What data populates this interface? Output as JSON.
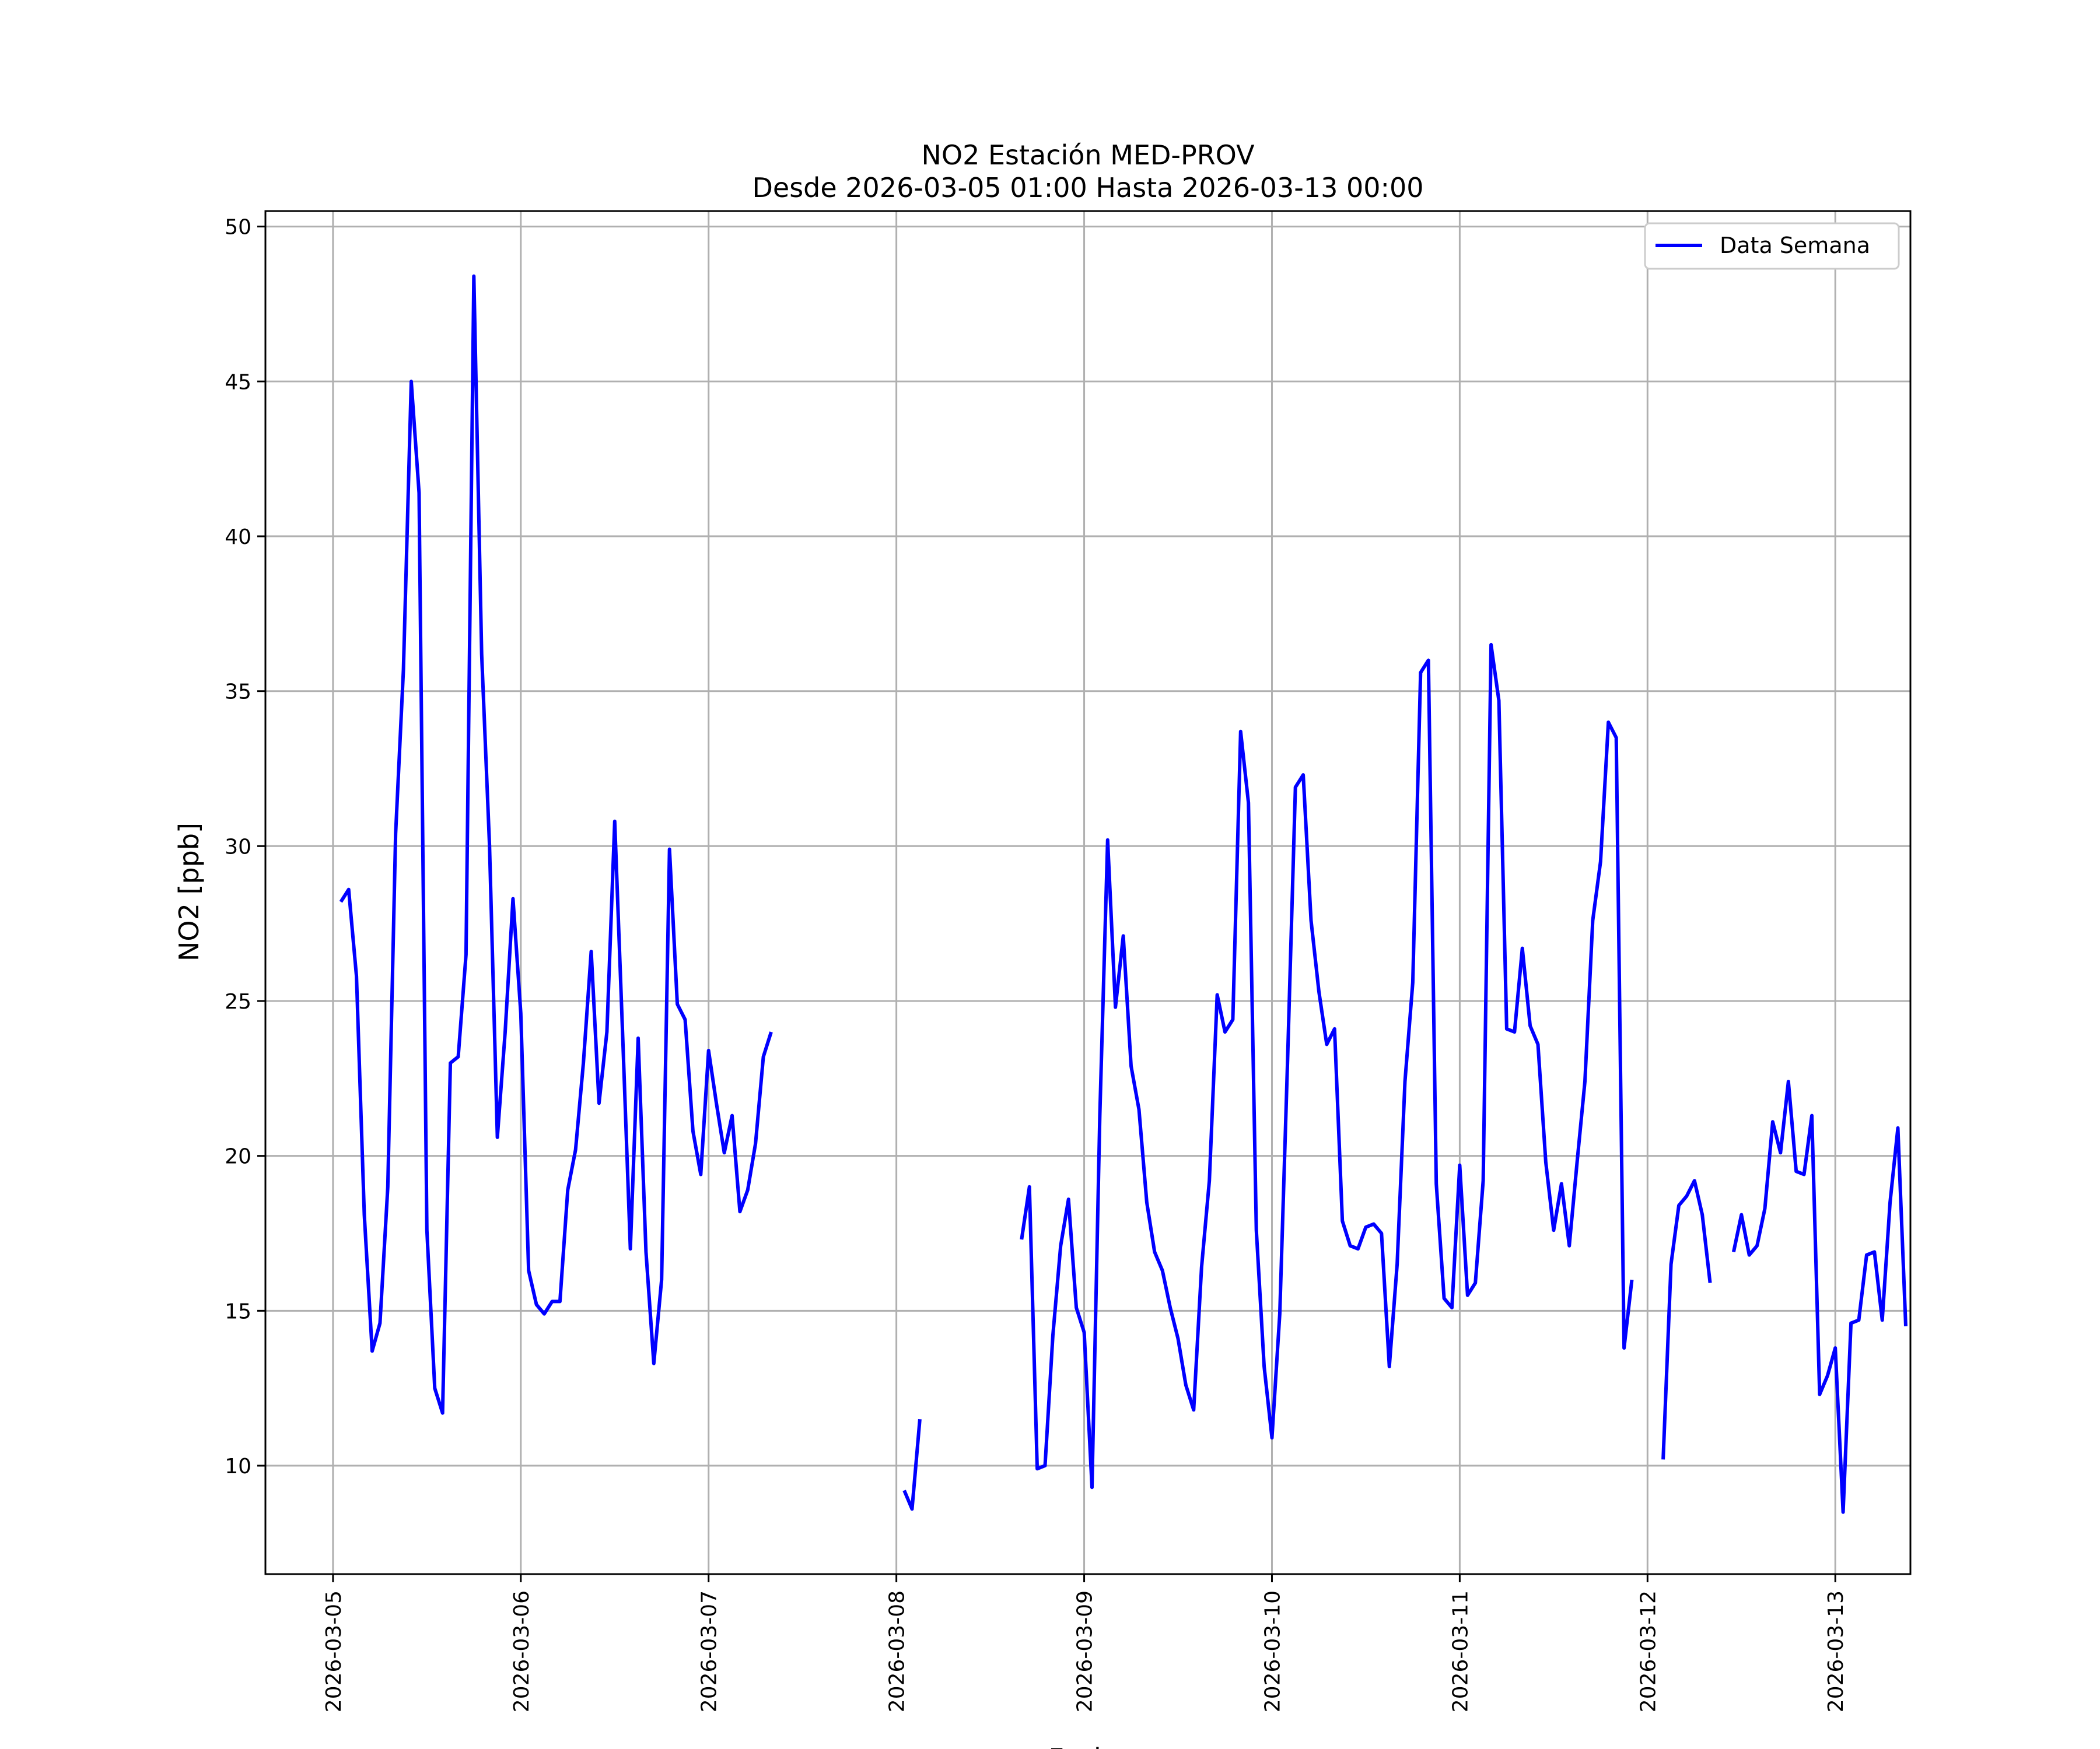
{
  "chart_data": {
    "type": "line",
    "title": "NO2 Estación MED-PROV",
    "subtitle": "Desde 2026-03-05 01:00 Hasta 2026-03-13 00:00",
    "xlabel": "Fecha",
    "ylabel": "NO2 [ppb]",
    "ylim": [
      6.5,
      50.5
    ],
    "xlim": [
      -0.36,
      8.4
    ],
    "yticks": [
      10,
      15,
      20,
      25,
      30,
      35,
      40,
      45,
      50
    ],
    "xticks": [
      {
        "value": 0,
        "label": "2026-03-05"
      },
      {
        "value": 1,
        "label": "2026-03-06"
      },
      {
        "value": 2,
        "label": "2026-03-07"
      },
      {
        "value": 3,
        "label": "2026-03-08"
      },
      {
        "value": 4,
        "label": "2026-03-09"
      },
      {
        "value": 5,
        "label": "2026-03-10"
      },
      {
        "value": 6,
        "label": "2026-03-11"
      },
      {
        "value": 7,
        "label": "2026-03-12"
      },
      {
        "value": 8,
        "label": "2026-03-13"
      }
    ],
    "grid": true,
    "legend_position": "top-right",
    "series": [
      {
        "name": "Data Semana",
        "color": "#0000ff",
        "x_unit": "hour",
        "values": [
          28.2,
          28.6,
          25.8,
          18.1,
          13.7,
          14.6,
          19.0,
          30.4,
          35.7,
          45.0,
          41.4,
          17.6,
          12.5,
          11.7,
          23.0,
          23.2,
          26.5,
          48.4,
          36.2,
          30.0,
          20.6,
          24.0,
          28.3,
          24.6,
          16.3,
          15.2,
          14.9,
          15.3,
          15.3,
          18.9,
          20.2,
          23.0,
          26.6,
          21.7,
          24.0,
          30.8,
          24.0,
          17.0,
          23.8,
          16.9,
          13.3,
          16.0,
          29.9,
          24.9,
          24.4,
          20.8,
          19.4,
          23.4,
          21.7,
          20.1,
          21.3,
          18.2,
          18.9,
          20.4,
          23.2,
          24.0,
          null,
          null,
          null,
          null,
          null,
          null,
          null,
          null,
          null,
          null,
          null,
          null,
          null,
          null,
          null,
          null,
          9.2,
          8.6,
          11.5,
          null,
          null,
          null,
          null,
          null,
          null,
          null,
          null,
          null,
          null,
          null,
          null,
          17.3,
          19.0,
          9.9,
          10.0,
          14.2,
          17.1,
          18.6,
          15.1,
          14.3,
          9.3,
          21.3,
          30.2,
          24.8,
          27.1,
          22.9,
          21.5,
          18.5,
          16.9,
          16.3,
          15.1,
          14.1,
          12.6,
          11.8,
          16.4,
          19.2,
          25.2,
          24.0,
          24.4,
          33.7,
          31.4,
          17.6,
          13.2,
          10.9,
          14.9,
          23.1,
          31.9,
          32.3,
          27.6,
          25.3,
          23.6,
          24.1,
          17.9,
          17.1,
          17.0,
          17.7,
          17.8,
          17.5,
          13.2,
          16.5,
          22.4,
          25.6,
          35.6,
          36.0,
          19.1,
          15.4,
          15.1,
          19.7,
          15.5,
          15.9,
          19.2,
          36.5,
          34.7,
          24.1,
          24.0,
          26.7,
          24.2,
          23.6,
          19.8,
          17.6,
          19.1,
          17.1,
          19.8,
          22.4,
          27.6,
          29.5,
          34.0,
          33.5,
          13.8,
          16.0,
          null,
          null,
          null,
          10.2,
          16.5,
          18.4,
          18.7,
          19.2,
          18.1,
          15.9,
          null,
          null,
          16.9,
          18.1,
          16.8,
          17.1,
          18.3,
          21.1,
          20.1,
          22.4,
          19.5,
          19.4,
          21.3,
          12.3,
          12.9,
          13.8,
          8.5,
          14.6,
          14.7,
          16.8,
          16.9,
          14.7,
          18.5,
          20.9,
          14.5
        ]
      }
    ]
  }
}
